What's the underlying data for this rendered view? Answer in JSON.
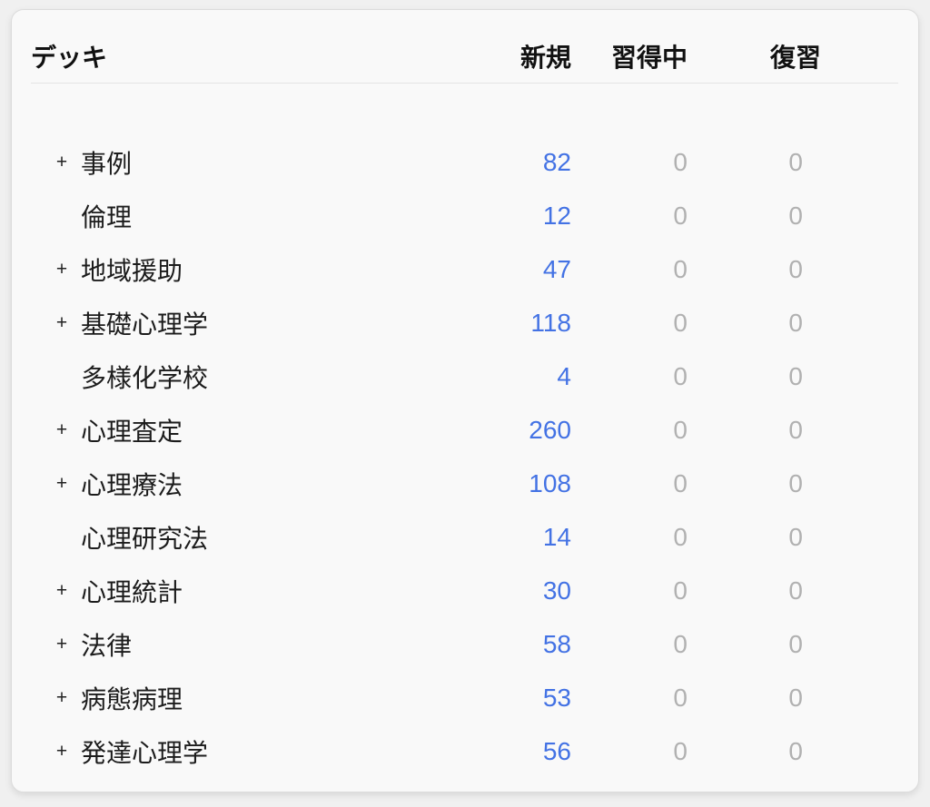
{
  "table": {
    "headers": {
      "deck": "デッキ",
      "new": "新規",
      "learning": "習得中",
      "review": "復習"
    },
    "expander_symbol": "+",
    "rows": [
      {
        "name": "事例",
        "expandable": true,
        "new": 82,
        "learning": 0,
        "review": 0
      },
      {
        "name": "倫理",
        "expandable": false,
        "new": 12,
        "learning": 0,
        "review": 0
      },
      {
        "name": "地域援助",
        "expandable": true,
        "new": 47,
        "learning": 0,
        "review": 0
      },
      {
        "name": "基礎心理学",
        "expandable": true,
        "new": 118,
        "learning": 0,
        "review": 0
      },
      {
        "name": "多様化学校",
        "expandable": false,
        "new": 4,
        "learning": 0,
        "review": 0
      },
      {
        "name": "心理査定",
        "expandable": true,
        "new": 260,
        "learning": 0,
        "review": 0
      },
      {
        "name": "心理療法",
        "expandable": true,
        "new": 108,
        "learning": 0,
        "review": 0
      },
      {
        "name": "心理研究法",
        "expandable": false,
        "new": 14,
        "learning": 0,
        "review": 0
      },
      {
        "name": "心理統計",
        "expandable": true,
        "new": 30,
        "learning": 0,
        "review": 0
      },
      {
        "name": "法律",
        "expandable": true,
        "new": 58,
        "learning": 0,
        "review": 0
      },
      {
        "name": "病態病理",
        "expandable": true,
        "new": 53,
        "learning": 0,
        "review": 0
      },
      {
        "name": "発達心理学",
        "expandable": true,
        "new": 56,
        "learning": 0,
        "review": 0
      }
    ],
    "colors": {
      "new_count": "#4372e4",
      "zero_count": "#b1b1b1",
      "card_background": "#f9f9f9",
      "page_background": "#f0f0f0"
    }
  }
}
